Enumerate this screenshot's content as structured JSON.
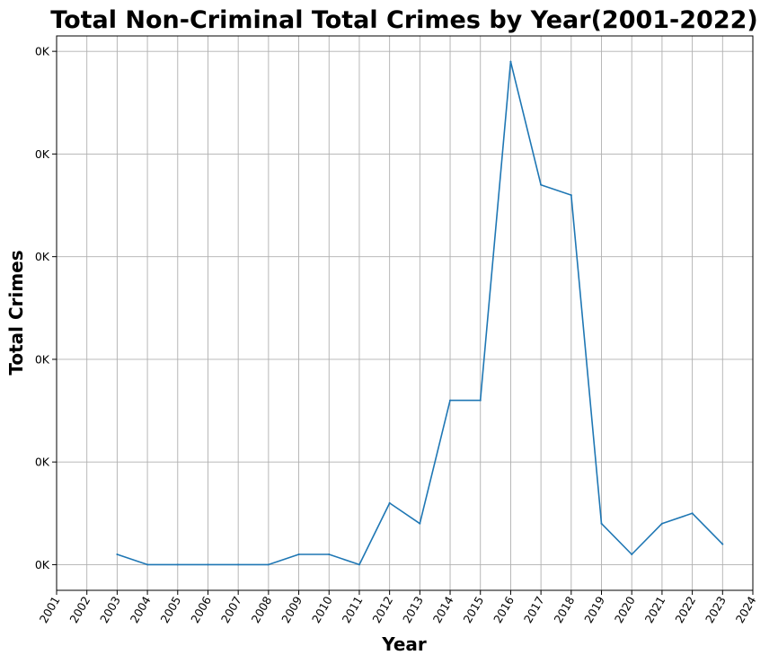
{
  "chart_data": {
    "type": "line",
    "title": "Total Non-Criminal Total Crimes by Year(2001-2022)",
    "xlabel": "Year",
    "ylabel": "Total Crimes",
    "x_ticks": [
      "2001",
      "2002",
      "2003",
      "2004",
      "2005",
      "2006",
      "2007",
      "2008",
      "2009",
      "2010",
      "2011",
      "2012",
      "2013",
      "2014",
      "2015",
      "2016",
      "2017",
      "2018",
      "2019",
      "2020",
      "2021",
      "2022",
      "2023",
      "2024"
    ],
    "y_ticks": [
      "0K",
      "0K",
      "0K",
      "0K",
      "0K",
      "0K"
    ],
    "y_tick_values": [
      0,
      10,
      20,
      30,
      40,
      50
    ],
    "xlim": [
      2001,
      2024
    ],
    "ylim": [
      -2.5,
      51.5
    ],
    "grid": true,
    "color": "#1f77b4",
    "x": [
      2003,
      2004,
      2005,
      2006,
      2007,
      2008,
      2009,
      2010,
      2011,
      2012,
      2013,
      2014,
      2015,
      2016,
      2017,
      2018,
      2019,
      2020,
      2021,
      2022,
      2023
    ],
    "values": [
      1,
      0,
      0,
      0,
      0,
      0,
      1,
      1,
      0,
      6,
      4,
      16,
      16,
      49,
      37,
      36,
      4,
      1,
      4,
      5,
      2
    ]
  }
}
